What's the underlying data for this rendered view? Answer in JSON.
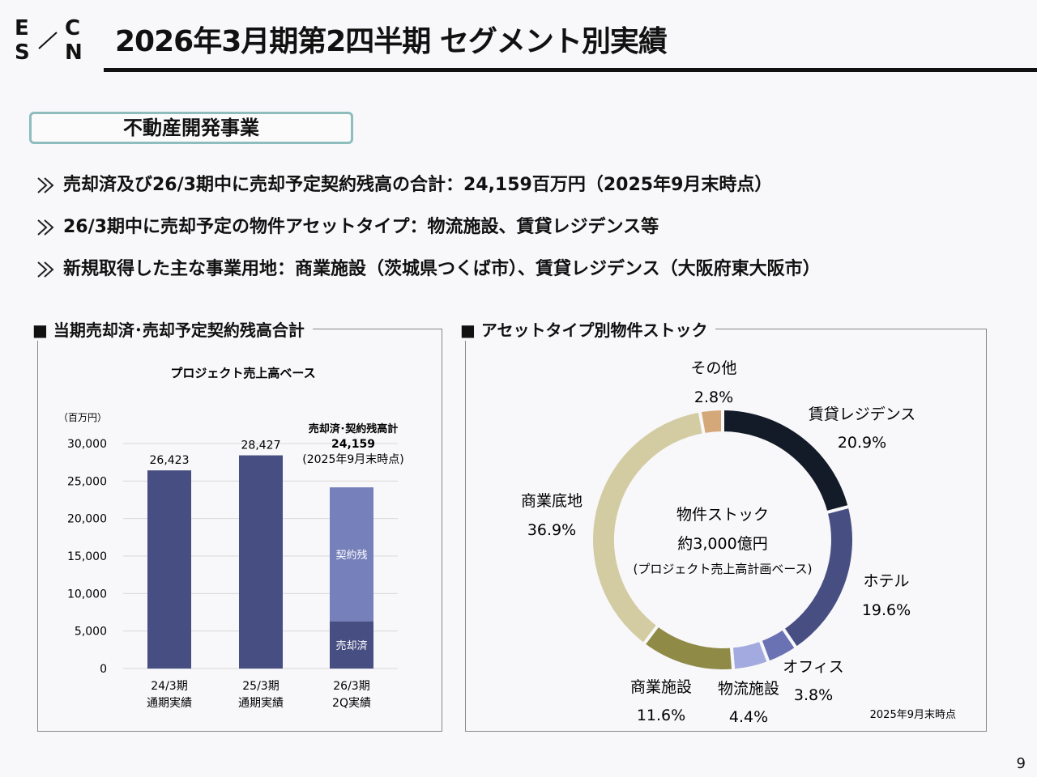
{
  "logo": {
    "l1": "E",
    "l2": "C",
    "l3": "S",
    "l4": "N"
  },
  "page_title": "2026年3月期第2四半期 セグメント別実績",
  "section_label": "不動産開発事業",
  "bullets": [
    "売却済及び26/3期中に売却予定契約残高の合計：24,159百万円（2025年9月末時点）",
    "26/3期中に売却予定の物件アセットタイプ：物流施設、賃貸レジデンス等",
    "新規取得した主な事業用地：商業施設（茨城県つくば市）、賃貸レジデンス（大阪府東大阪市）"
  ],
  "left_panel_title": "■ 当期売却済･売却予定契約残高合計",
  "right_panel_title": "■ アセットタイプ別物件ストック",
  "chart_data": [
    {
      "type": "bar",
      "title": "プロジェクト売上高ベース",
      "ylabel": "（百万円）",
      "ylim": [
        0,
        30000
      ],
      "yticks": [
        "30,000",
        "25,000",
        "20,000",
        "15,000",
        "10,000",
        "5,000",
        "0"
      ],
      "categories": [
        {
          "line1": "24/3期",
          "line2": "通期実績"
        },
        {
          "line1": "25/3期",
          "line2": "通期実績"
        },
        {
          "line1": "26/3期",
          "line2": "2Q実績"
        }
      ],
      "series": [
        {
          "name": "実績",
          "values": [
            26423,
            28427,
            null
          ],
          "labels": [
            "26,423",
            "28,427",
            ""
          ],
          "color": "#474f82"
        },
        {
          "name": "売却済",
          "values": [
            null,
            null,
            6300
          ],
          "color": "#474f82"
        },
        {
          "name": "契約残",
          "values": [
            null,
            null,
            17859
          ],
          "color": "#7680ba"
        }
      ],
      "stack_labels": {
        "sold": "売却済",
        "contract": "契約残"
      },
      "annotation": {
        "line1": "売却済･契約残高計",
        "line2": "24,159",
        "line3": "(2025年9月末時点)"
      }
    },
    {
      "type": "pie",
      "title": "アセットタイプ別物件ストック",
      "center": {
        "line1": "物件ストック",
        "line2": "約3,000億円",
        "line3": "(プロジェクト売上高計画ベース)"
      },
      "slices": [
        {
          "name": "賃貸レジデンス",
          "pct": "20.9%",
          "value": 20.9,
          "color": "#141b28"
        },
        {
          "name": "ホテル",
          "pct": "19.6%",
          "value": 19.6,
          "color": "#474f82"
        },
        {
          "name": "オフィス",
          "pct": "3.8%",
          "value": 3.8,
          "color": "#6a72b4"
        },
        {
          "name": "物流施設",
          "pct": "4.4%",
          "value": 4.4,
          "color": "#a3aadf"
        },
        {
          "name": "商業施設",
          "pct": "11.6%",
          "value": 11.6,
          "color": "#8f8a46"
        },
        {
          "name": "商業底地",
          "pct": "36.9%",
          "value": 36.9,
          "color": "#d3cca2"
        },
        {
          "name": "その他",
          "pct": "2.8%",
          "value": 2.8,
          "color": "#d4a878"
        }
      ],
      "note": "2025年9月末時点"
    }
  ],
  "page_number": "9"
}
